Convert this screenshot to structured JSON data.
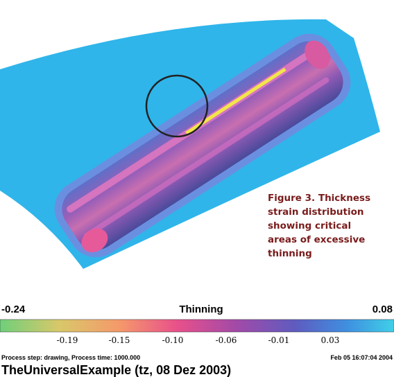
{
  "figure": {
    "caption": [
      "Figure 3. Thickness",
      "strain distribution",
      "showing critical",
      "areas of excessive",
      "thinning"
    ]
  },
  "colorbar": {
    "title": "Thinning",
    "min_label": "-0.24",
    "max_label": "0.08",
    "ticks": [
      "-0.19",
      "-0.15",
      "-0.10",
      "-0.06",
      "-0.01",
      "0.03"
    ]
  },
  "footer": {
    "process": "Process step: drawing,  Process time: 1000.000",
    "date": "Feb 05 16:07:04 2004",
    "example": "TheUniversalExample (tz, 08 Dez 2003)"
  }
}
